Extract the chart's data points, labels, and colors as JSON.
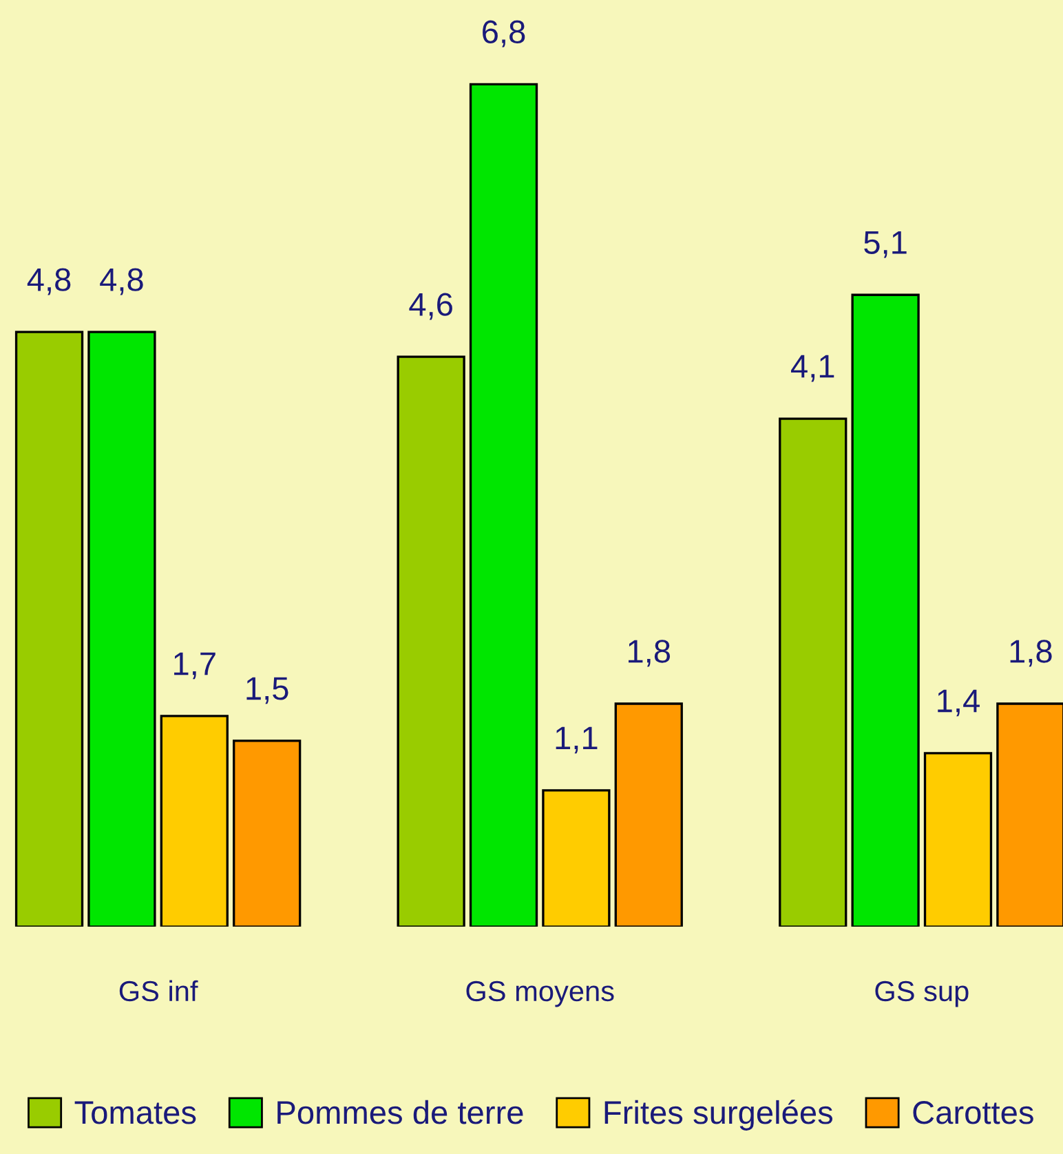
{
  "chart_data": {
    "type": "bar",
    "categories": [
      "GS inf",
      "GS moyens",
      "GS sup"
    ],
    "series": [
      {
        "name": "Tomates",
        "color": "#99cc00",
        "values": [
          4.8,
          4.6,
          4.1
        ],
        "value_labels": [
          "4,8",
          "4,6",
          "4,1"
        ]
      },
      {
        "name": "Pommes de terre",
        "color": "#00e600",
        "values": [
          4.8,
          6.8,
          5.1
        ],
        "value_labels": [
          "4,8",
          "6,8",
          "5,1"
        ]
      },
      {
        "name": "Frites surgelées",
        "color": "#ffcc00",
        "values": [
          1.7,
          1.1,
          1.4
        ],
        "value_labels": [
          "1,7",
          "1,1",
          "1,4"
        ]
      },
      {
        "name": "Carottes",
        "color": "#ff9900",
        "values": [
          1.5,
          1.8,
          1.8
        ],
        "value_labels": [
          "1,5",
          "1,8",
          "1,8"
        ]
      }
    ],
    "grid": false,
    "legend": "bottom"
  }
}
